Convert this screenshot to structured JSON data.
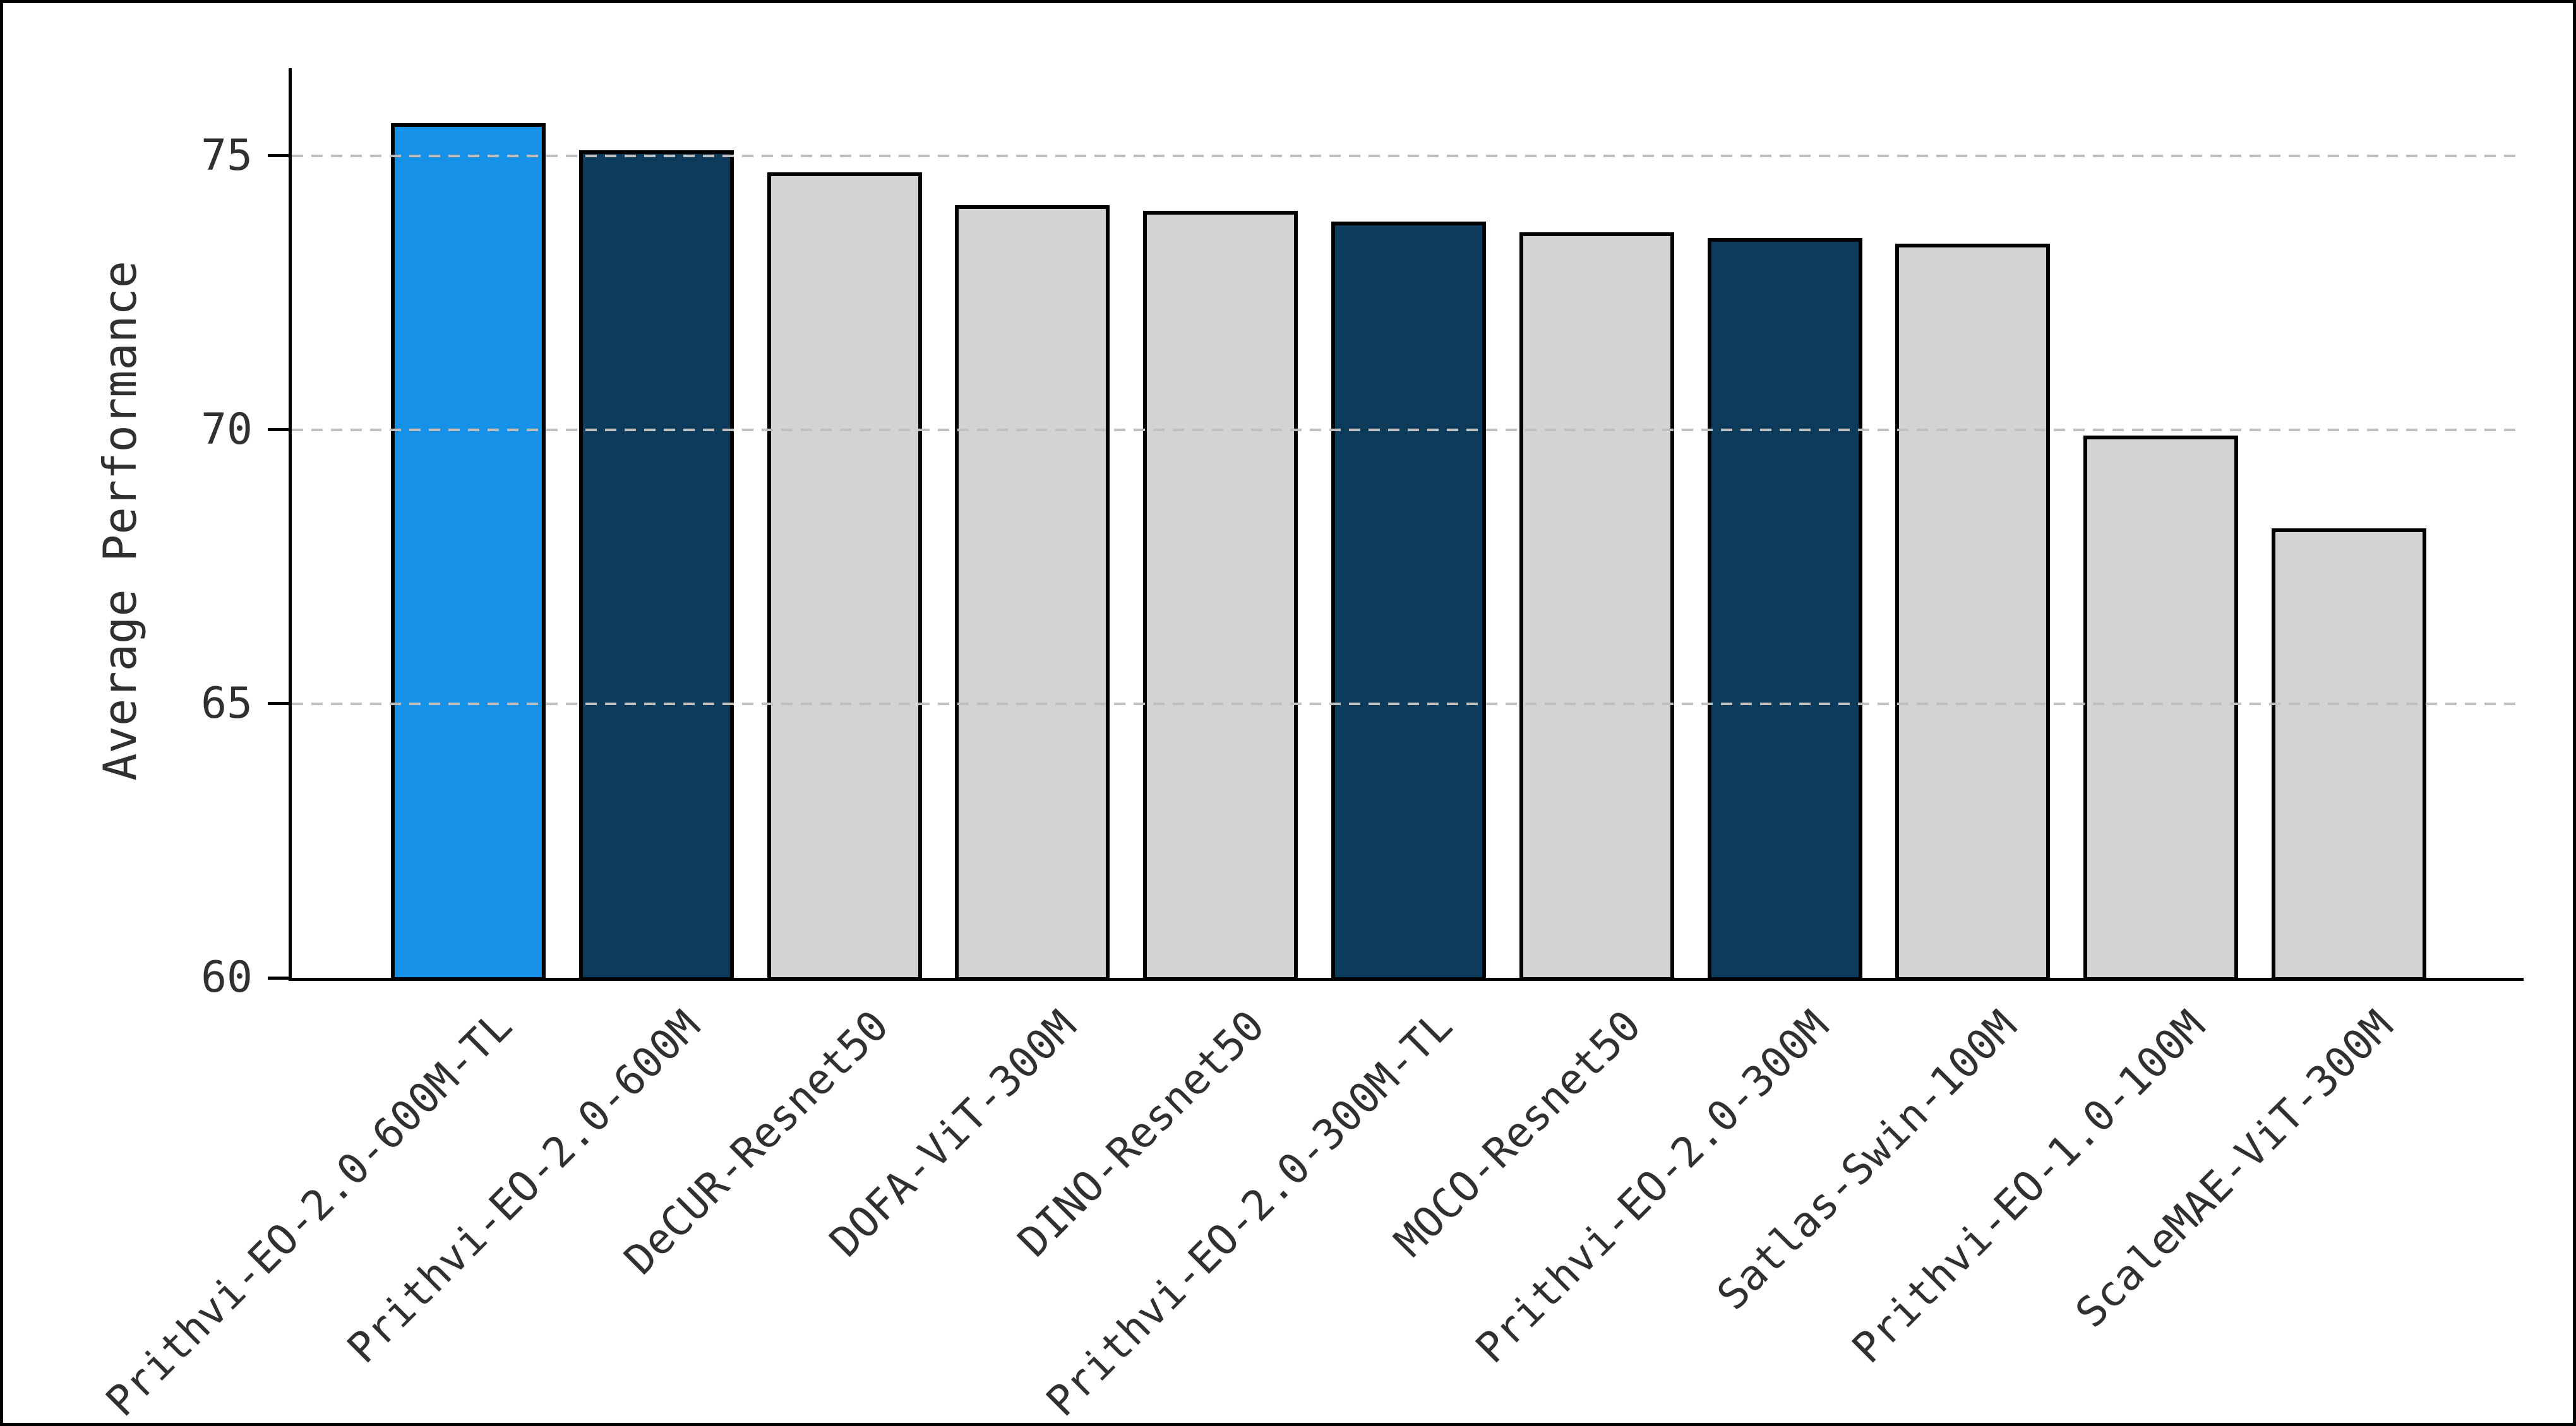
{
  "chart_data": {
    "type": "bar",
    "title": "",
    "xlabel": "",
    "ylabel": "Average Performance",
    "categories": [
      "Prithvi-EO-2.0-600M-TL",
      "Prithvi-EO-2.0-600M",
      "DeCUR-Resnet50",
      "DOFA-ViT-300M",
      "DINO-Resnet50",
      "Prithvi-EO-2.0-300M-TL",
      "MOCO-Resnet50",
      "Prithvi-EO-2.0-300M",
      "Satlas-Swin-100M",
      "Prithvi-EO-1.0-100M",
      "ScaleMAE-ViT-300M"
    ],
    "values": [
      75.6,
      75.1,
      74.7,
      74.1,
      74.0,
      73.8,
      73.6,
      73.5,
      73.4,
      69.9,
      68.2
    ],
    "bar_color_roles": [
      "highlight_blue",
      "dark_navy",
      "neutral_gray",
      "neutral_gray",
      "neutral_gray",
      "dark_navy",
      "neutral_gray",
      "dark_navy",
      "neutral_gray",
      "neutral_gray",
      "neutral_gray"
    ],
    "palette": {
      "highlight_blue": "#1592e8",
      "dark_navy": "#0d3b5c",
      "neutral_gray": "#d3d3d3",
      "bar_edge": "#000000",
      "gridline": "#bfbfbf",
      "axis": "#000000",
      "text": "#303030"
    },
    "yticks": [
      60,
      65,
      70,
      75
    ],
    "ylim": [
      60,
      76.6
    ],
    "grid": "horizontal dashed, drawn above bars, at 65/70/75",
    "legend_position": "none",
    "xtick_rotation_deg": 45
  }
}
